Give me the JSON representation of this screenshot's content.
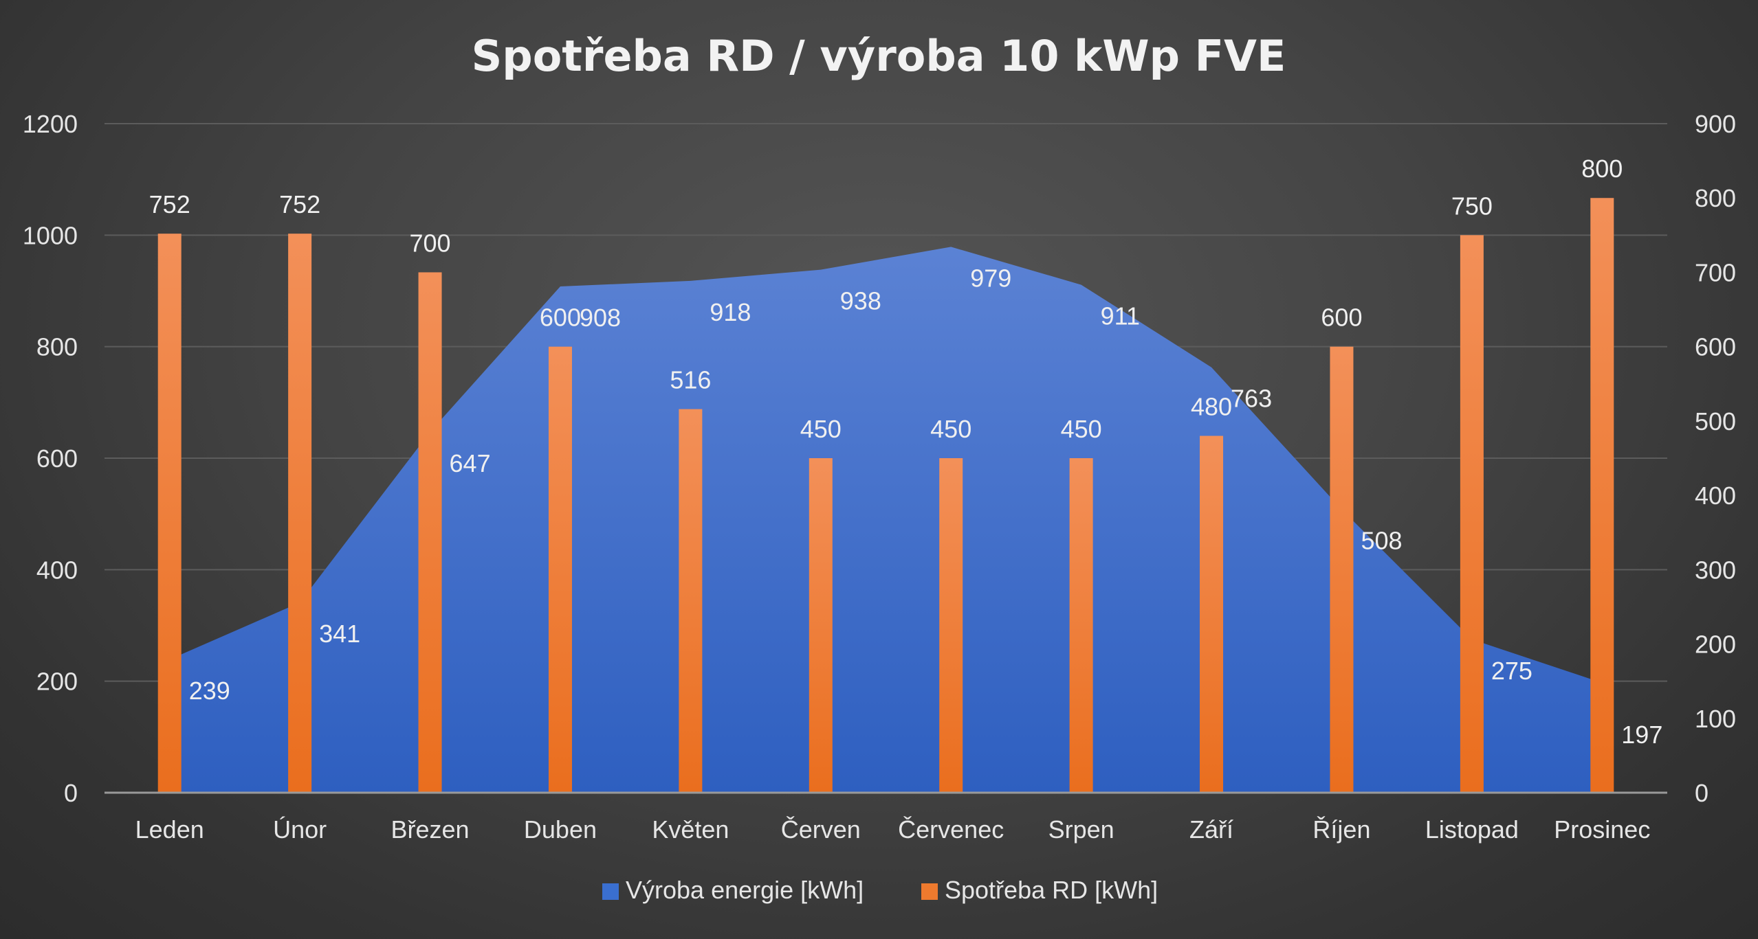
{
  "chart_data": {
    "type": "bar",
    "title": "Spotřeba RD / výroba 10 kWp FVE",
    "categories": [
      "Leden",
      "Únor",
      "Březen",
      "Duben",
      "Květen",
      "Červen",
      "Červenec",
      "Srpen",
      "Září",
      "Říjen",
      "Listopad",
      "Prosinec"
    ],
    "series": [
      {
        "name": "Výroba energie [kWh]",
        "type": "area",
        "axis": "left",
        "color": "#3a6fd0",
        "values": [
          239,
          341,
          647,
          908,
          918,
          938,
          979,
          911,
          763,
          508,
          275,
          197
        ]
      },
      {
        "name": "Spotřeba RD [kWh]",
        "type": "bar",
        "axis": "right",
        "color": "#ee7a2e",
        "values": [
          752,
          752,
          700,
          600,
          516,
          450,
          450,
          450,
          480,
          600,
          750,
          800
        ]
      }
    ],
    "y_left": {
      "ylim": [
        0,
        1200
      ],
      "ticks": [
        "0",
        "200",
        "400",
        "600",
        "800",
        "1000",
        "1200"
      ]
    },
    "y_right": {
      "ylim": [
        0,
        900
      ],
      "ticks": [
        "0",
        "100",
        "200",
        "300",
        "400",
        "500",
        "600",
        "700",
        "800",
        "900"
      ]
    },
    "grid": true,
    "legend": "bottom"
  }
}
